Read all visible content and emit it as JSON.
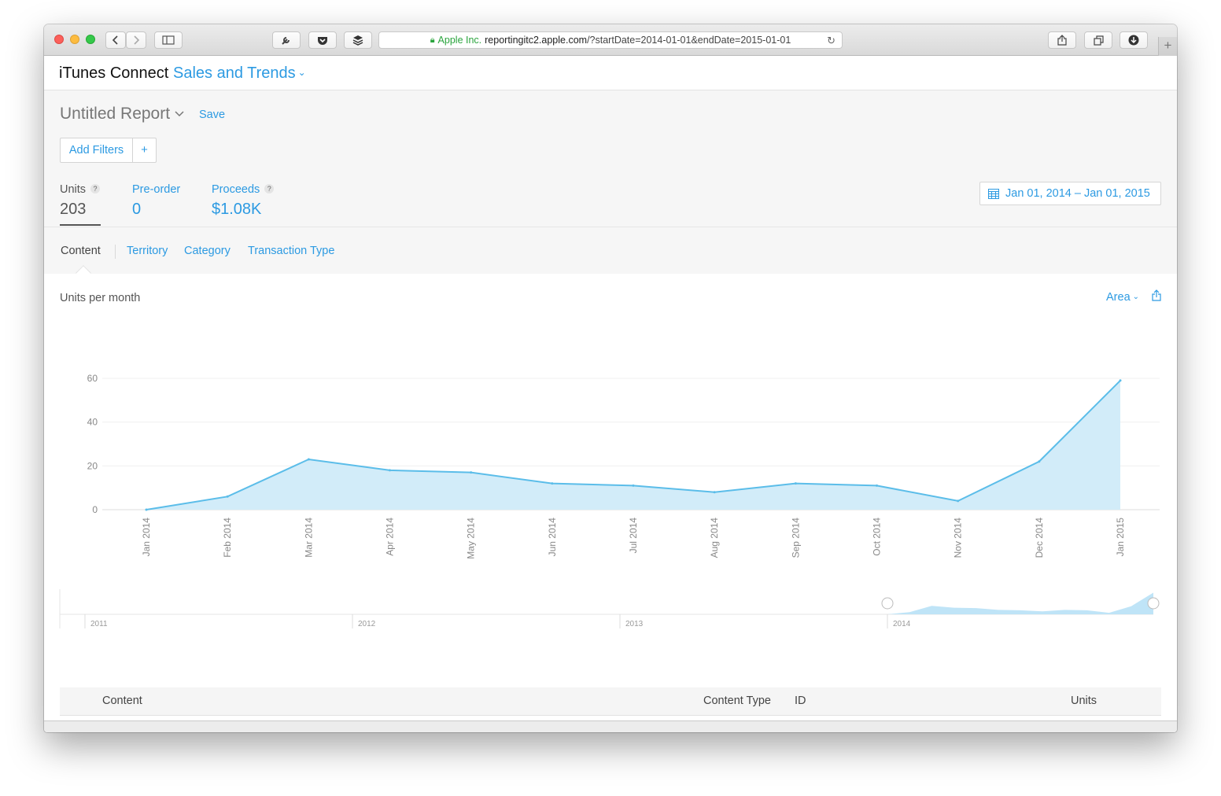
{
  "browser": {
    "url_org": "Apple Inc.",
    "url_host": "reportingitc2.apple.com",
    "url_path": "/?startDate=2014-01-01&endDate=2015-01-01",
    "new_tab_label": "+"
  },
  "app": {
    "brand": "iTunes Connect",
    "module": "Sales and Trends"
  },
  "report": {
    "title": "Untitled Report",
    "save_label": "Save",
    "add_filters_label": "Add Filters",
    "add_filters_plus": "+"
  },
  "metrics": [
    {
      "label": "Units",
      "value": "203",
      "help": "?"
    },
    {
      "label": "Pre-order",
      "value": "0"
    },
    {
      "label": "Proceeds",
      "value": "$1.08K",
      "help": "?"
    }
  ],
  "date_range": "Jan 01, 2014 – Jan 01, 2015",
  "tabs": [
    "Content",
    "Territory",
    "Category",
    "Transaction Type"
  ],
  "chart_header": {
    "title": "Units per month",
    "type_label": "Area"
  },
  "chart_data": {
    "type": "area",
    "title": "Units per month",
    "x": [
      "Jan 2014",
      "Feb 2014",
      "Mar 2014",
      "Apr 2014",
      "May 2014",
      "Jun 2014",
      "Jul 2014",
      "Aug 2014",
      "Sep 2014",
      "Oct 2014",
      "Nov 2014",
      "Dec 2014",
      "Jan 2015"
    ],
    "series": [
      {
        "values": [
          0,
          6,
          23,
          18,
          17,
          12,
          11,
          8,
          12,
          11,
          4,
          22,
          59
        ]
      }
    ],
    "yticks": [
      0,
      20,
      40,
      60
    ],
    "ylim": [
      0,
      60
    ],
    "grid": true,
    "color": "#5bbde9",
    "fill": "#d2ecf9",
    "overview": {
      "years": [
        "2011",
        "2012",
        "2013",
        "2014"
      ]
    }
  },
  "table": {
    "columns": [
      "Content",
      "Content Type",
      "ID",
      "Units"
    ]
  }
}
